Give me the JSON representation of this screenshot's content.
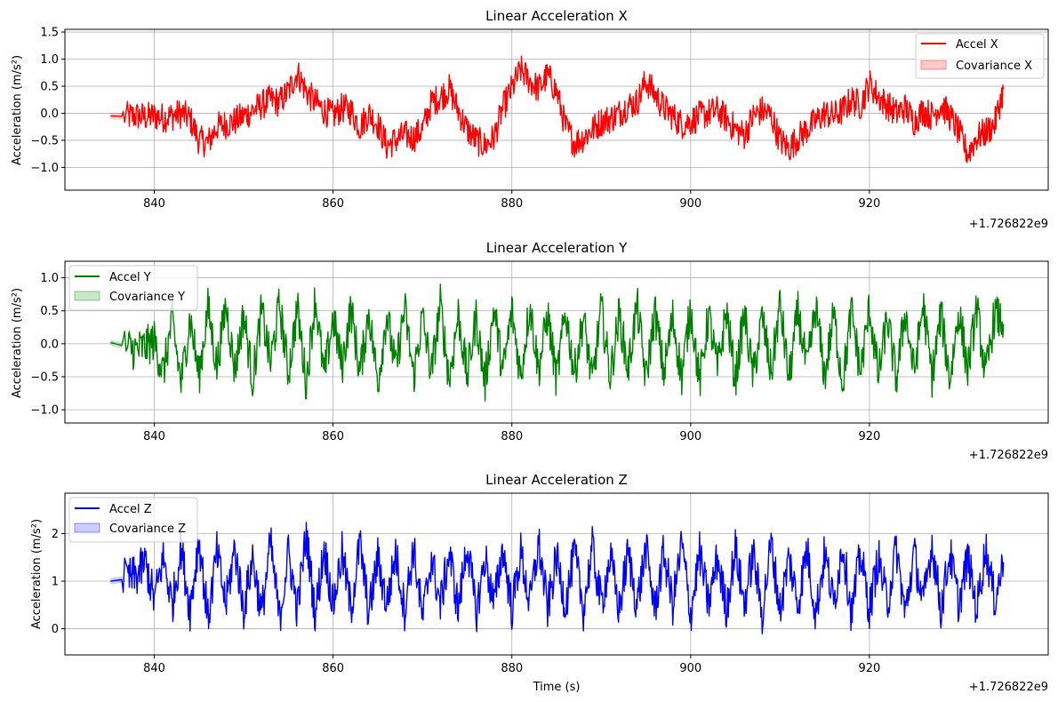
{
  "figure": {
    "offset_label": "+1.726822e9"
  },
  "chart_data": [
    {
      "type": "line",
      "title": "Linear Acceleration X",
      "xlabel": "",
      "ylabel": "Acceleration (m/s²)",
      "xlim": [
        830,
        940
      ],
      "ylim": [
        -1.42,
        1.55
      ],
      "x_ticks": [
        840,
        860,
        880,
        900,
        920
      ],
      "y_ticks": [
        -1.0,
        -0.5,
        0.0,
        0.5,
        1.0,
        1.5
      ],
      "y_tick_labels": [
        "−1.0",
        "−0.5",
        "0.0",
        "0.5",
        "1.0",
        "1.5"
      ],
      "grid": true,
      "legend_position": "top-right",
      "x_offset_text": "+1.726822e9",
      "series": [
        {
          "name": "Accel X",
          "color": "#ff0000",
          "band_name": "Covariance X",
          "x": [
            835.1,
            837,
            838,
            839,
            840,
            841,
            842,
            843,
            844,
            845,
            846,
            847,
            848,
            849,
            850,
            851,
            852,
            853,
            854,
            855,
            856,
            857,
            858,
            859,
            860,
            861,
            862,
            863,
            864,
            865,
            866,
            867,
            868,
            869,
            870,
            871,
            872,
            873,
            874,
            875,
            876,
            877,
            878,
            879,
            880,
            881,
            882,
            883,
            884,
            885,
            886,
            887,
            888,
            889,
            890,
            891,
            892,
            893,
            894,
            895,
            896,
            897,
            898,
            899,
            900,
            901,
            902,
            903,
            904,
            905,
            906,
            907,
            908,
            909,
            910,
            911,
            912,
            913,
            914,
            915,
            916,
            917,
            918,
            919,
            920,
            921,
            922,
            923,
            924,
            925,
            926,
            927,
            928,
            929,
            930,
            931,
            932,
            933,
            934,
            935
          ],
          "y": [
            -0.05,
            -0.06,
            -0.05,
            -0.07,
            -0.05,
            -0.08,
            -0.05,
            0.0,
            -0.1,
            -0.5,
            -0.55,
            -0.25,
            -0.2,
            -0.15,
            -0.05,
            0.05,
            0.15,
            0.25,
            0.2,
            0.4,
            0.75,
            0.4,
            0.2,
            0.05,
            -0.05,
            0.1,
            0.05,
            -0.25,
            0.0,
            -0.2,
            -0.6,
            -0.5,
            -0.4,
            -0.45,
            -0.3,
            0.2,
            0.3,
            0.45,
            0.05,
            -0.3,
            -0.5,
            -0.6,
            -0.45,
            0.1,
            0.45,
            0.8,
            0.6,
            0.45,
            0.7,
            0.4,
            -0.25,
            -0.55,
            -0.45,
            -0.3,
            -0.15,
            -0.1,
            0.0,
            0.15,
            0.2,
            0.6,
            0.35,
            0.1,
            -0.05,
            -0.2,
            -0.15,
            -0.05,
            0.0,
            0.05,
            -0.1,
            -0.3,
            -0.4,
            -0.05,
            0.05,
            -0.05,
            -0.5,
            -0.65,
            -0.45,
            -0.3,
            -0.15,
            0.0,
            -0.05,
            0.05,
            0.25,
            0.15,
            0.55,
            0.3,
            0.15,
            0.0,
            0.1,
            -0.15,
            0.05,
            -0.05,
            0.15,
            -0.05,
            -0.35,
            -0.75,
            -0.45,
            -0.35,
            -0.2,
            0.45
          ]
        }
      ]
    },
    {
      "type": "line",
      "title": "Linear Acceleration Y",
      "xlabel": "",
      "ylabel": "Acceleration (m/s²)",
      "xlim": [
        830,
        940
      ],
      "ylim": [
        -1.2,
        1.25
      ],
      "x_ticks": [
        840,
        860,
        880,
        900,
        920
      ],
      "y_ticks": [
        -1.0,
        -0.5,
        0.0,
        0.5,
        1.0
      ],
      "y_tick_labels": [
        "−1.0",
        "−0.5",
        "0.0",
        "0.5",
        "1.0"
      ],
      "grid": true,
      "legend_position": "top-left",
      "x_offset_text": "+1.726822e9",
      "series": [
        {
          "name": "Accel Y",
          "color": "#008000",
          "band_name": "Covariance Y",
          "x": [
            835.1,
            837,
            838,
            839,
            840,
            841,
            842,
            843,
            844,
            845,
            846,
            847,
            848,
            849,
            850,
            851,
            852,
            853,
            854,
            855,
            856,
            857,
            858,
            859,
            860,
            861,
            862,
            863,
            864,
            865,
            866,
            867,
            868,
            869,
            870,
            871,
            872,
            873,
            874,
            875,
            876,
            877,
            878,
            879,
            880,
            881,
            882,
            883,
            884,
            885,
            886,
            887,
            888,
            889,
            890,
            891,
            892,
            893,
            894,
            895,
            896,
            897,
            898,
            899,
            900,
            901,
            902,
            903,
            904,
            905,
            906,
            907,
            908,
            909,
            910,
            911,
            912,
            913,
            914,
            915,
            916,
            917,
            918,
            919,
            920,
            921,
            922,
            923,
            924,
            925,
            926,
            927,
            928,
            929,
            930,
            931,
            932,
            933,
            934,
            935
          ],
          "y": [
            0.02,
            -0.05,
            -0.1,
            -0.05,
            0.05,
            -0.45,
            0.35,
            -0.6,
            0.4,
            -0.5,
            0.55,
            -0.35,
            0.6,
            -0.4,
            0.45,
            -0.55,
            0.5,
            -0.3,
            0.6,
            -0.45,
            0.55,
            -0.6,
            0.7,
            -0.5,
            0.4,
            -0.35,
            0.55,
            -0.45,
            0.5,
            -0.6,
            0.45,
            -0.4,
            0.55,
            -0.5,
            0.4,
            -0.45,
            0.6,
            -0.55,
            0.45,
            -0.5,
            0.4,
            -0.6,
            0.55,
            -0.45,
            0.5,
            -0.5,
            0.6,
            -0.4,
            0.45,
            -0.55,
            0.5,
            -0.45,
            0.4,
            -0.6,
            0.55,
            -0.5,
            0.45,
            -0.4,
            0.6,
            -0.55,
            0.5,
            -0.45,
            0.4,
            -0.5,
            0.55,
            -0.6,
            0.45,
            -0.4,
            0.5,
            -0.55,
            0.45,
            -0.5,
            0.4,
            -0.45,
            0.6,
            -0.55,
            0.5,
            -0.4,
            0.55,
            -0.5,
            0.45,
            -0.6,
            0.5,
            -0.45,
            0.55,
            -0.5,
            0.4,
            -0.55,
            0.5,
            -0.45,
            0.6,
            -0.5,
            0.45,
            -0.55,
            0.5,
            -0.4,
            0.55,
            -0.5,
            0.45,
            0.3
          ]
        }
      ]
    },
    {
      "type": "line",
      "title": "Linear Acceleration Z",
      "xlabel": "Time (s)",
      "ylabel": "Acceleration (m/s²)",
      "xlim": [
        830,
        940
      ],
      "ylim": [
        -0.55,
        2.85
      ],
      "x_ticks": [
        840,
        860,
        880,
        900,
        920
      ],
      "y_ticks": [
        0,
        1,
        2
      ],
      "y_tick_labels": [
        "0",
        "1",
        "2"
      ],
      "grid": true,
      "legend_position": "top-left",
      "x_offset_text": "+1.726822e9",
      "series": [
        {
          "name": "Accel Z",
          "color": "#0000ff",
          "band_name": "Covariance Z",
          "x": [
            835.1,
            837,
            838,
            839,
            840,
            841,
            842,
            843,
            844,
            845,
            846,
            847,
            848,
            849,
            850,
            851,
            852,
            853,
            854,
            855,
            856,
            857,
            858,
            859,
            860,
            861,
            862,
            863,
            864,
            865,
            866,
            867,
            868,
            869,
            870,
            871,
            872,
            873,
            874,
            875,
            876,
            877,
            878,
            879,
            880,
            881,
            882,
            883,
            884,
            885,
            886,
            887,
            888,
            889,
            890,
            891,
            892,
            893,
            894,
            895,
            896,
            897,
            898,
            899,
            900,
            901,
            902,
            903,
            904,
            905,
            906,
            907,
            908,
            909,
            910,
            911,
            912,
            913,
            914,
            915,
            916,
            917,
            918,
            919,
            920,
            921,
            922,
            923,
            924,
            925,
            926,
            927,
            928,
            929,
            930,
            931,
            932,
            933,
            934,
            935
          ],
          "y": [
            1.0,
            1.05,
            1.1,
            1.4,
            0.6,
            1.5,
            0.5,
            1.7,
            0.4,
            1.9,
            0.2,
            1.6,
            0.5,
            1.7,
            0.4,
            1.5,
            0.3,
            1.8,
            0.2,
            1.6,
            0.4,
            2.0,
            0.3,
            1.7,
            0.5,
            1.6,
            0.4,
            1.8,
            0.3,
            1.5,
            0.5,
            1.6,
            0.4,
            1.7,
            0.2,
            1.5,
            0.5,
            1.6,
            0.4,
            1.8,
            0.3,
            1.5,
            0.5,
            1.7,
            0.4,
            1.6,
            0.5,
            1.8,
            0.4,
            1.5,
            0.5,
            1.6,
            0.4,
            1.7,
            0.5,
            1.5,
            0.4,
            1.6,
            0.5,
            1.7,
            0.4,
            1.6,
            0.5,
            1.8,
            0.3,
            1.6,
            0.5,
            1.5,
            0.4,
            1.7,
            0.5,
            1.6,
            0.3,
            1.8,
            0.4,
            1.5,
            0.5,
            1.7,
            0.3,
            1.6,
            0.5,
            1.8,
            0.3,
            1.6,
            0.4,
            1.5,
            0.5,
            1.7,
            0.3,
            1.6,
            0.5,
            1.8,
            0.4,
            1.6,
            0.5,
            1.5,
            0.4,
            1.7,
            0.6,
            1.4
          ]
        }
      ]
    }
  ]
}
